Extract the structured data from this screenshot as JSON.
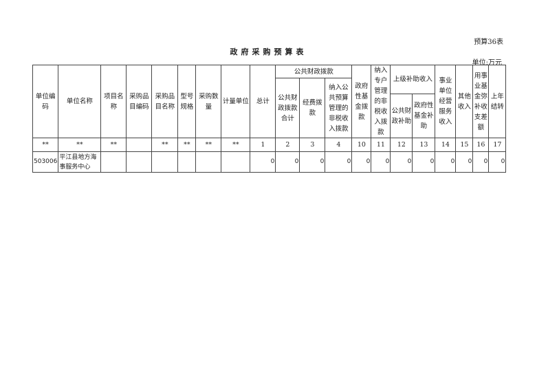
{
  "table_code": "预算36表",
  "title": "政府采购预算表",
  "unit": "单位:万元",
  "headers": {
    "unit_code": "单位编码",
    "unit_name": "单位名称",
    "project_name": "项目名称",
    "item_code": "采购品目编码",
    "item_name": "采购品目名称",
    "model": "型号规格",
    "quantity": "采购数量",
    "measure": "计量单位",
    "total": "总计",
    "public_finance": "公共财政拨款",
    "pf_total": "公共财政拨款合计",
    "pf_expense": "经费拨款",
    "pf_nontax": "纳入公共预算管理的非税收入拨款",
    "gov_fund": "政府性基金拨款",
    "special_nontax": "纳入专户管理的非税收入拨款",
    "superior": "上级补助收入",
    "sup_public": "公共财政补助",
    "sup_fund": "政府性基金补助",
    "business": "事业单位经营服务收入",
    "other": "其他收入",
    "fund_offset": "用事业基金弥补收支差额",
    "carryover": "上年结转"
  },
  "index_row": [
    "**",
    "**",
    "**",
    "",
    "**",
    "**",
    "**",
    "**",
    "1",
    "2",
    "3",
    "4",
    "10",
    "11",
    "12",
    "13",
    "14",
    "15",
    "16",
    "17"
  ],
  "rows": [
    {
      "cells": [
        "503006",
        "平江县地方海事服务中心",
        "",
        "",
        "",
        "",
        "",
        "",
        "0",
        "0",
        "0",
        "0",
        "0",
        "0",
        "0",
        "0",
        "0",
        "0",
        "0",
        "0"
      ]
    }
  ]
}
